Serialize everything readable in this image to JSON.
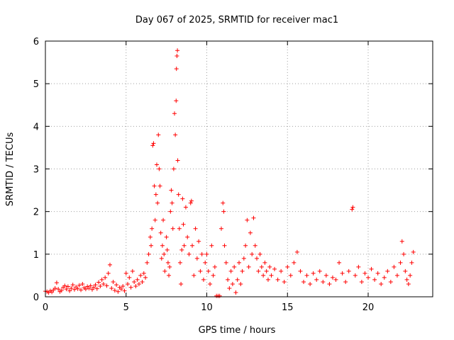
{
  "chart_data": {
    "type": "scatter",
    "title": "Day 067 of 2025, SRMTID for receiver mac1",
    "xlabel": "GPS time / hours",
    "ylabel": "SRMTID / TECUs",
    "xlim": [
      0,
      24
    ],
    "ylim": [
      0,
      6
    ],
    "xticks": [
      0,
      5,
      10,
      15,
      20
    ],
    "yticks": [
      0,
      1,
      2,
      3,
      4,
      5,
      6
    ],
    "grid": true,
    "marker": "+",
    "color": "#ff0000",
    "series": [
      {
        "name": "SRMTID",
        "points": [
          [
            0.0,
            0.13
          ],
          [
            0.1,
            0.12
          ],
          [
            0.2,
            0.1
          ],
          [
            0.3,
            0.14
          ],
          [
            0.4,
            0.11
          ],
          [
            0.5,
            0.16
          ],
          [
            0.6,
            0.2
          ],
          [
            0.7,
            0.33
          ],
          [
            0.8,
            0.18
          ],
          [
            0.9,
            0.12
          ],
          [
            1.0,
            0.15
          ],
          [
            1.1,
            0.22
          ],
          [
            1.2,
            0.26
          ],
          [
            1.3,
            0.18
          ],
          [
            1.4,
            0.24
          ],
          [
            1.5,
            0.14
          ],
          [
            1.6,
            0.2
          ],
          [
            1.7,
            0.28
          ],
          [
            1.8,
            0.17
          ],
          [
            1.9,
            0.23
          ],
          [
            2.0,
            0.19
          ],
          [
            2.1,
            0.27
          ],
          [
            2.2,
            0.16
          ],
          [
            2.3,
            0.3
          ],
          [
            2.4,
            0.21
          ],
          [
            2.5,
            0.18
          ],
          [
            2.6,
            0.24
          ],
          [
            2.7,
            0.2
          ],
          [
            2.8,
            0.26
          ],
          [
            2.9,
            0.17
          ],
          [
            3.0,
            0.22
          ],
          [
            3.1,
            0.28
          ],
          [
            3.2,
            0.19
          ],
          [
            3.3,
            0.34
          ],
          [
            3.4,
            0.25
          ],
          [
            3.5,
            0.4
          ],
          [
            3.6,
            0.3
          ],
          [
            3.7,
            0.45
          ],
          [
            3.8,
            0.26
          ],
          [
            3.9,
            0.55
          ],
          [
            4.0,
            0.75
          ],
          [
            4.1,
            0.2
          ],
          [
            4.2,
            0.35
          ],
          [
            4.3,
            0.15
          ],
          [
            4.4,
            0.28
          ],
          [
            4.5,
            0.12
          ],
          [
            4.6,
            0.22
          ],
          [
            4.7,
            0.18
          ],
          [
            4.8,
            0.25
          ],
          [
            4.9,
            0.14
          ],
          [
            5.0,
            0.55
          ],
          [
            5.1,
            0.3
          ],
          [
            5.2,
            0.45
          ],
          [
            5.3,
            0.22
          ],
          [
            5.4,
            0.6
          ],
          [
            5.5,
            0.35
          ],
          [
            5.6,
            0.25
          ],
          [
            5.7,
            0.4
          ],
          [
            5.8,
            0.3
          ],
          [
            5.9,
            0.5
          ],
          [
            6.0,
            0.35
          ],
          [
            6.1,
            0.55
          ],
          [
            6.2,
            0.45
          ],
          [
            6.3,
            0.8
          ],
          [
            6.4,
            1.0
          ],
          [
            6.5,
            1.4
          ],
          [
            6.55,
            1.2
          ],
          [
            6.6,
            1.6
          ],
          [
            6.65,
            3.55
          ],
          [
            6.7,
            3.6
          ],
          [
            6.75,
            2.6
          ],
          [
            6.8,
            1.8
          ],
          [
            6.85,
            2.4
          ],
          [
            6.9,
            3.1
          ],
          [
            6.95,
            2.2
          ],
          [
            7.0,
            3.8
          ],
          [
            7.05,
            3.0
          ],
          [
            7.1,
            2.6
          ],
          [
            7.15,
            1.5
          ],
          [
            7.2,
            0.9
          ],
          [
            7.25,
            1.2
          ],
          [
            7.3,
            1.8
          ],
          [
            7.35,
            1.0
          ],
          [
            7.4,
            0.6
          ],
          [
            7.5,
            1.4
          ],
          [
            7.55,
            1.1
          ],
          [
            7.6,
            0.8
          ],
          [
            7.65,
            0.5
          ],
          [
            7.7,
            0.7
          ],
          [
            7.75,
            2.0
          ],
          [
            7.8,
            2.5
          ],
          [
            7.85,
            2.2
          ],
          [
            7.9,
            1.6
          ],
          [
            7.95,
            3.0
          ],
          [
            8.0,
            4.3
          ],
          [
            8.05,
            3.8
          ],
          [
            8.1,
            4.6
          ],
          [
            8.12,
            5.35
          ],
          [
            8.15,
            5.65
          ],
          [
            8.18,
            5.78
          ],
          [
            8.2,
            3.2
          ],
          [
            8.25,
            2.4
          ],
          [
            8.3,
            1.6
          ],
          [
            8.35,
            0.8
          ],
          [
            8.4,
            0.3
          ],
          [
            8.45,
            1.1
          ],
          [
            8.5,
            2.3
          ],
          [
            8.55,
            1.7
          ],
          [
            8.6,
            1.2
          ],
          [
            8.7,
            2.1
          ],
          [
            8.8,
            1.4
          ],
          [
            8.9,
            1.0
          ],
          [
            9.0,
            2.2
          ],
          [
            9.05,
            2.25
          ],
          [
            9.1,
            1.2
          ],
          [
            9.2,
            0.5
          ],
          [
            9.3,
            1.6
          ],
          [
            9.4,
            0.9
          ],
          [
            9.5,
            1.3
          ],
          [
            9.6,
            0.6
          ],
          [
            9.7,
            1.0
          ],
          [
            9.8,
            0.4
          ],
          [
            9.9,
            0.8
          ],
          [
            10.0,
            1.0
          ],
          [
            10.1,
            0.6
          ],
          [
            10.2,
            0.3
          ],
          [
            10.3,
            1.2
          ],
          [
            10.4,
            0.5
          ],
          [
            10.5,
            0.7
          ],
          [
            10.6,
            0.02
          ],
          [
            10.7,
            0.02
          ],
          [
            10.8,
            0.02
          ],
          [
            10.9,
            1.6
          ],
          [
            11.0,
            2.2
          ],
          [
            11.05,
            2.0
          ],
          [
            11.1,
            1.2
          ],
          [
            11.2,
            0.8
          ],
          [
            11.3,
            0.4
          ],
          [
            11.4,
            0.2
          ],
          [
            11.5,
            0.6
          ],
          [
            11.6,
            0.3
          ],
          [
            11.7,
            0.7
          ],
          [
            11.8,
            0.1
          ],
          [
            11.9,
            0.4
          ],
          [
            12.0,
            0.8
          ],
          [
            12.1,
            0.3
          ],
          [
            12.2,
            0.6
          ],
          [
            12.3,
            0.9
          ],
          [
            12.4,
            1.2
          ],
          [
            12.5,
            1.8
          ],
          [
            12.6,
            0.7
          ],
          [
            12.7,
            1.5
          ],
          [
            12.8,
            1.0
          ],
          [
            12.9,
            1.85
          ],
          [
            13.0,
            1.2
          ],
          [
            13.1,
            0.9
          ],
          [
            13.2,
            0.6
          ],
          [
            13.3,
            1.0
          ],
          [
            13.4,
            0.7
          ],
          [
            13.5,
            0.5
          ],
          [
            13.6,
            0.8
          ],
          [
            13.7,
            0.6
          ],
          [
            13.8,
            0.4
          ],
          [
            13.9,
            0.7
          ],
          [
            14.0,
            0.5
          ],
          [
            14.2,
            0.65
          ],
          [
            14.4,
            0.4
          ],
          [
            14.6,
            0.6
          ],
          [
            14.8,
            0.35
          ],
          [
            15.0,
            0.7
          ],
          [
            15.2,
            0.5
          ],
          [
            15.4,
            0.8
          ],
          [
            15.6,
            1.05
          ],
          [
            15.8,
            0.6
          ],
          [
            16.0,
            0.35
          ],
          [
            16.2,
            0.5
          ],
          [
            16.4,
            0.3
          ],
          [
            16.6,
            0.55
          ],
          [
            16.8,
            0.4
          ],
          [
            17.0,
            0.6
          ],
          [
            17.2,
            0.35
          ],
          [
            17.4,
            0.5
          ],
          [
            17.6,
            0.3
          ],
          [
            17.8,
            0.45
          ],
          [
            18.0,
            0.4
          ],
          [
            18.2,
            0.8
          ],
          [
            18.4,
            0.55
          ],
          [
            18.6,
            0.35
          ],
          [
            18.8,
            0.6
          ],
          [
            19.0,
            2.05
          ],
          [
            19.05,
            2.1
          ],
          [
            19.2,
            0.5
          ],
          [
            19.4,
            0.7
          ],
          [
            19.6,
            0.35
          ],
          [
            19.8,
            0.55
          ],
          [
            20.0,
            0.45
          ],
          [
            20.2,
            0.65
          ],
          [
            20.4,
            0.4
          ],
          [
            20.6,
            0.55
          ],
          [
            20.8,
            0.3
          ],
          [
            21.0,
            0.45
          ],
          [
            21.2,
            0.6
          ],
          [
            21.4,
            0.35
          ],
          [
            21.6,
            0.7
          ],
          [
            21.8,
            0.5
          ],
          [
            22.0,
            0.8
          ],
          [
            22.1,
            1.3
          ],
          [
            22.2,
            1.0
          ],
          [
            22.3,
            0.6
          ],
          [
            22.4,
            0.4
          ],
          [
            22.5,
            0.3
          ],
          [
            22.6,
            0.5
          ],
          [
            22.7,
            0.8
          ],
          [
            22.8,
            1.05
          ]
        ]
      }
    ]
  }
}
